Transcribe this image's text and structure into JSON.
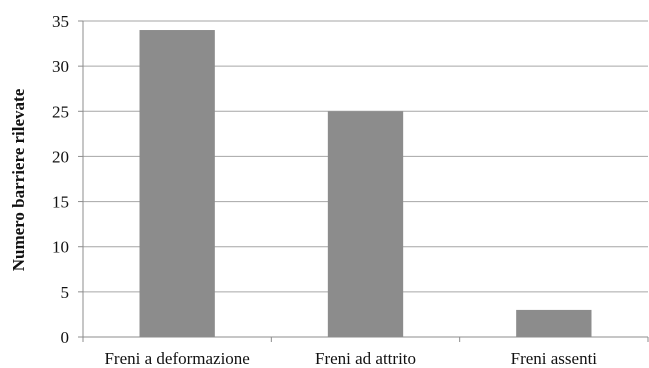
{
  "chart_data": {
    "type": "bar",
    "categories": [
      "Freni a deformazione",
      "Freni ad attrito",
      "Freni assenti"
    ],
    "values": [
      34,
      25,
      3
    ],
    "title": "",
    "xlabel": "",
    "ylabel": "Numero barriere rilevate",
    "ylim": [
      0,
      35
    ],
    "yticks": [
      0,
      5,
      10,
      15,
      20,
      25,
      30,
      35
    ],
    "grid": true,
    "legend": "none",
    "colors": {
      "bar": "#8c8c8c",
      "grid": "#a6a6a6",
      "axis": "#8c8c8c"
    }
  }
}
